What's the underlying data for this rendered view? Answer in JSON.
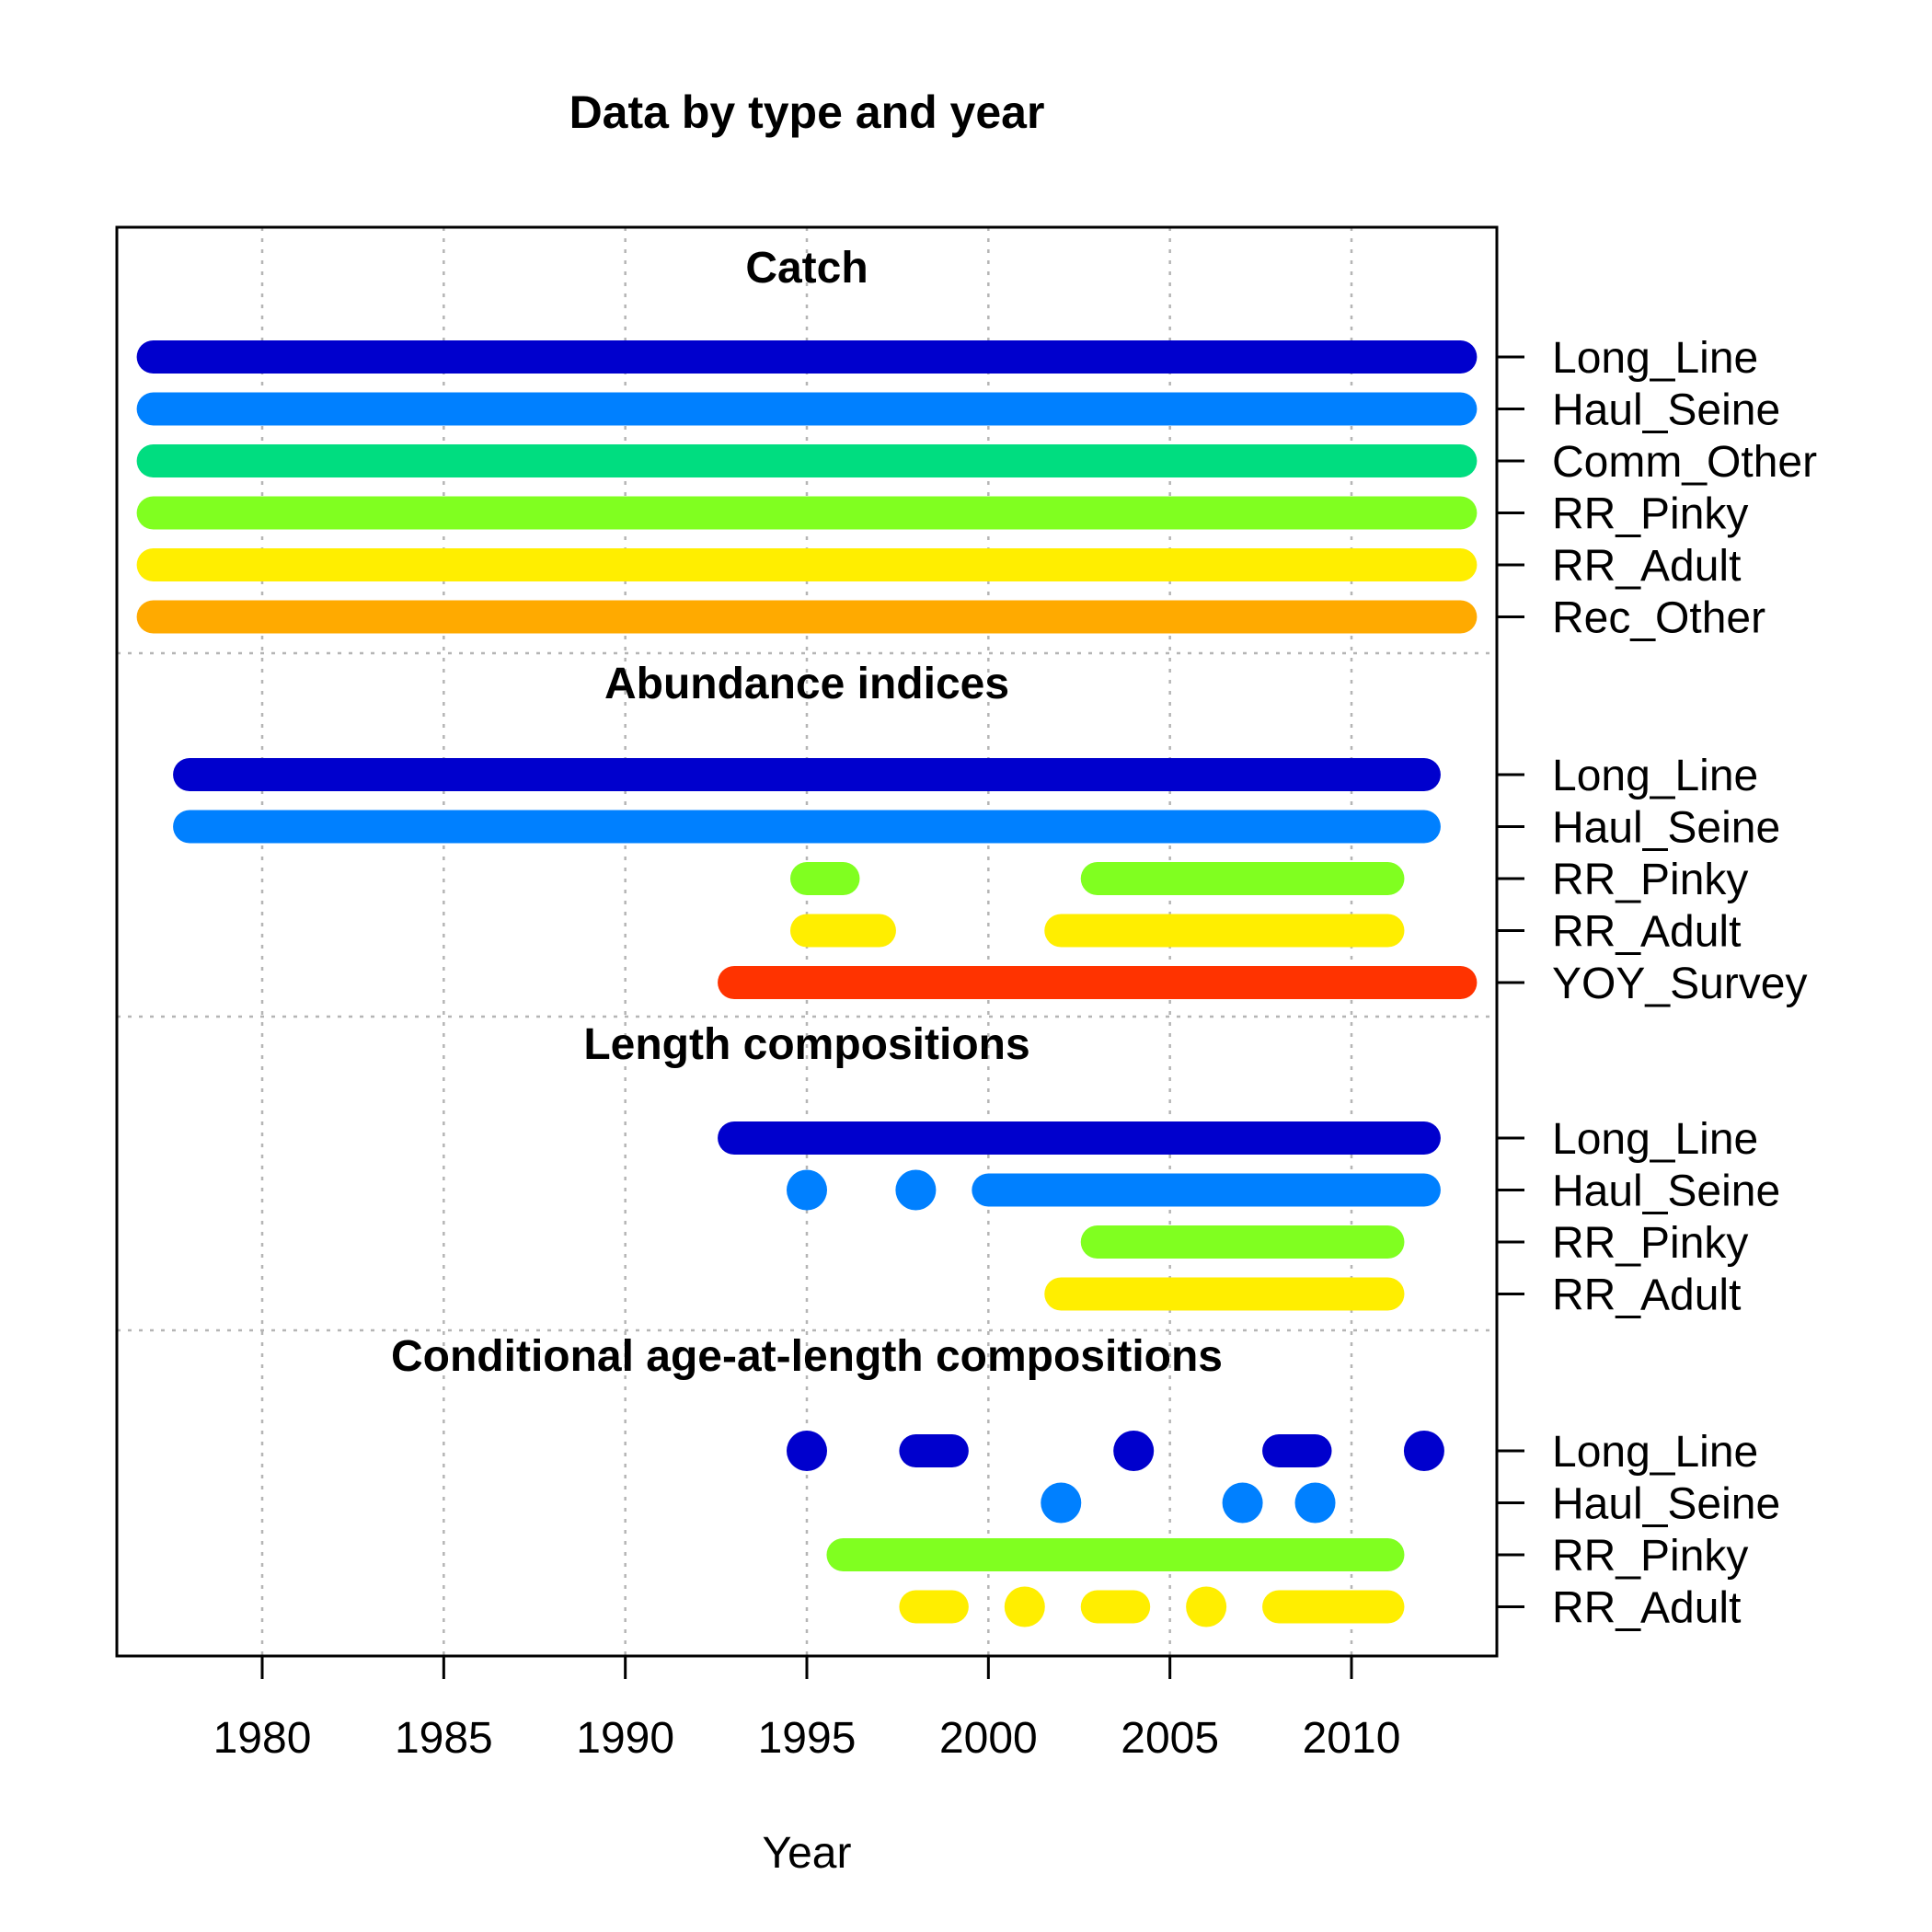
{
  "chart_data": {
    "type": "timeline",
    "title": "Data by type and year",
    "xlabel": "Year",
    "xlim": [
      1976,
      2014
    ],
    "xticks": [
      1980,
      1985,
      1990,
      1995,
      2000,
      2005,
      2010
    ],
    "grid": true,
    "colors": {
      "Long_Line": "#0000CD",
      "Haul_Seine": "#0080FF",
      "Comm_Other": "#00DD80",
      "RR_Pinky": "#80FF20",
      "RR_Adult": "#FFEE00",
      "Rec_Other": "#FFAA00",
      "YOY_Survey": "#FF3300"
    },
    "sections": [
      {
        "title": "Catch",
        "rows": [
          {
            "label": "Long_Line",
            "segments": [
              [
                1977,
                2013
              ]
            ]
          },
          {
            "label": "Haul_Seine",
            "segments": [
              [
                1977,
                2013
              ]
            ]
          },
          {
            "label": "Comm_Other",
            "segments": [
              [
                1977,
                2013
              ]
            ]
          },
          {
            "label": "RR_Pinky",
            "segments": [
              [
                1977,
                2013
              ]
            ]
          },
          {
            "label": "RR_Adult",
            "segments": [
              [
                1977,
                2013
              ]
            ]
          },
          {
            "label": "Rec_Other",
            "segments": [
              [
                1977,
                2013
              ]
            ]
          }
        ]
      },
      {
        "title": "Abundance indices",
        "rows": [
          {
            "label": "Long_Line",
            "segments": [
              [
                1978,
                2012
              ]
            ]
          },
          {
            "label": "Haul_Seine",
            "segments": [
              [
                1978,
                2012
              ]
            ]
          },
          {
            "label": "RR_Pinky",
            "segments": [
              [
                1995,
                1996
              ],
              [
                2003,
                2011
              ]
            ]
          },
          {
            "label": "RR_Adult",
            "segments": [
              [
                1995,
                1997
              ],
              [
                2002,
                2011
              ]
            ]
          },
          {
            "label": "YOY_Survey",
            "segments": [
              [
                1993,
                2013
              ]
            ]
          }
        ]
      },
      {
        "title": "Length compositions",
        "rows": [
          {
            "label": "Long_Line",
            "segments": [
              [
                1993,
                2012
              ]
            ]
          },
          {
            "label": "Haul_Seine",
            "segments": [
              [
                1995,
                1995
              ],
              [
                1998,
                1998
              ],
              [
                2000,
                2012
              ]
            ]
          },
          {
            "label": "RR_Pinky",
            "segments": [
              [
                2003,
                2011
              ]
            ]
          },
          {
            "label": "RR_Adult",
            "segments": [
              [
                2002,
                2011
              ]
            ]
          }
        ]
      },
      {
        "title": "Conditional age-at-length compositions",
        "rows": [
          {
            "label": "Long_Line",
            "segments": [
              [
                1995,
                1995
              ],
              [
                1998,
                1999
              ],
              [
                2004,
                2004
              ],
              [
                2008,
                2009
              ],
              [
                2012,
                2012
              ]
            ]
          },
          {
            "label": "Haul_Seine",
            "segments": [
              [
                2002,
                2002
              ],
              [
                2007,
                2007
              ],
              [
                2009,
                2009
              ]
            ]
          },
          {
            "label": "RR_Pinky",
            "segments": [
              [
                1996,
                2011
              ]
            ]
          },
          {
            "label": "RR_Adult",
            "segments": [
              [
                1998,
                1999
              ],
              [
                2001,
                2001
              ],
              [
                2003,
                2004
              ],
              [
                2006,
                2006
              ],
              [
                2008,
                2011
              ]
            ]
          }
        ]
      }
    ]
  }
}
